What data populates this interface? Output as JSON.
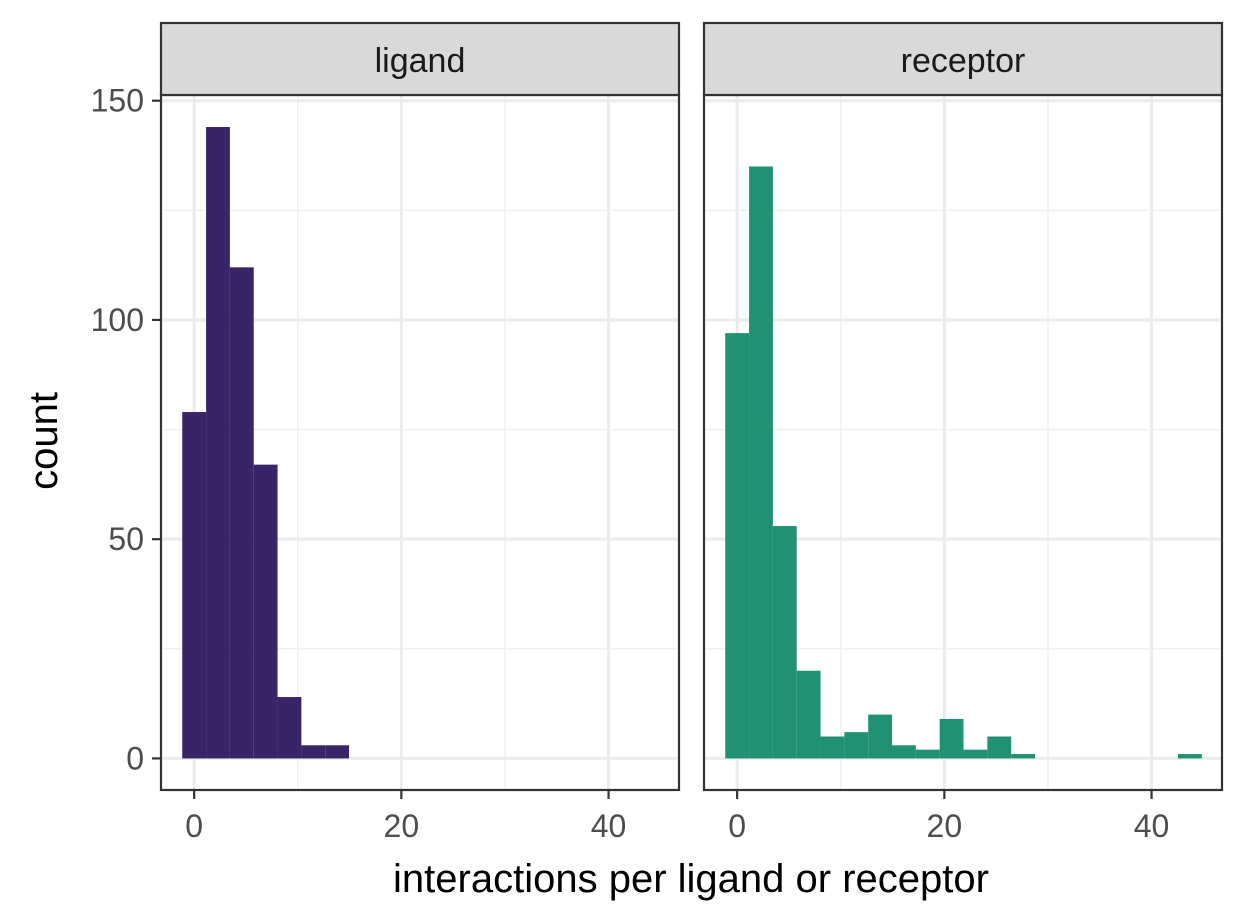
{
  "chart_data": {
    "type": "bar",
    "xlabel": "interactions per ligand or receptor",
    "ylabel": "count",
    "xlim": [
      -3.2,
      46.8
    ],
    "ylim": [
      -7.2,
      151.3
    ],
    "x_ticks": [
      0,
      20,
      40
    ],
    "y_ticks": [
      0,
      50,
      100,
      150
    ],
    "grid": true,
    "bin_width": 2.3,
    "facets": [
      {
        "label": "ligand",
        "color": "#3A2468",
        "bins": [
          {
            "x0": -1.15,
            "x1": 1.15,
            "count": 79
          },
          {
            "x0": 1.15,
            "x1": 3.45,
            "count": 144
          },
          {
            "x0": 3.45,
            "x1": 5.75,
            "count": 112
          },
          {
            "x0": 5.75,
            "x1": 8.05,
            "count": 67
          },
          {
            "x0": 8.05,
            "x1": 10.35,
            "count": 14
          },
          {
            "x0": 10.35,
            "x1": 12.65,
            "count": 3
          },
          {
            "x0": 12.65,
            "x1": 14.95,
            "count": 3
          }
        ]
      },
      {
        "label": "receptor",
        "color": "#209273",
        "bins": [
          {
            "x0": -1.15,
            "x1": 1.15,
            "count": 97
          },
          {
            "x0": 1.15,
            "x1": 3.45,
            "count": 135
          },
          {
            "x0": 3.45,
            "x1": 5.75,
            "count": 53
          },
          {
            "x0": 5.75,
            "x1": 8.05,
            "count": 20
          },
          {
            "x0": 8.05,
            "x1": 10.35,
            "count": 5
          },
          {
            "x0": 10.35,
            "x1": 12.65,
            "count": 6
          },
          {
            "x0": 12.65,
            "x1": 14.95,
            "count": 10
          },
          {
            "x0": 14.95,
            "x1": 17.25,
            "count": 3
          },
          {
            "x0": 17.25,
            "x1": 19.55,
            "count": 2
          },
          {
            "x0": 19.55,
            "x1": 21.85,
            "count": 9
          },
          {
            "x0": 21.85,
            "x1": 24.15,
            "count": 2
          },
          {
            "x0": 24.15,
            "x1": 26.45,
            "count": 5
          },
          {
            "x0": 26.45,
            "x1": 28.75,
            "count": 1
          },
          {
            "x0": 28.75,
            "x1": 31.05,
            "count": 0
          },
          {
            "x0": 31.05,
            "x1": 33.35,
            "count": 0
          },
          {
            "x0": 33.35,
            "x1": 35.65,
            "count": 0
          },
          {
            "x0": 35.65,
            "x1": 37.95,
            "count": 0
          },
          {
            "x0": 37.95,
            "x1": 40.25,
            "count": 0
          },
          {
            "x0": 40.25,
            "x1": 42.55,
            "count": 0
          },
          {
            "x0": 42.55,
            "x1": 44.85,
            "count": 1
          }
        ]
      }
    ]
  }
}
